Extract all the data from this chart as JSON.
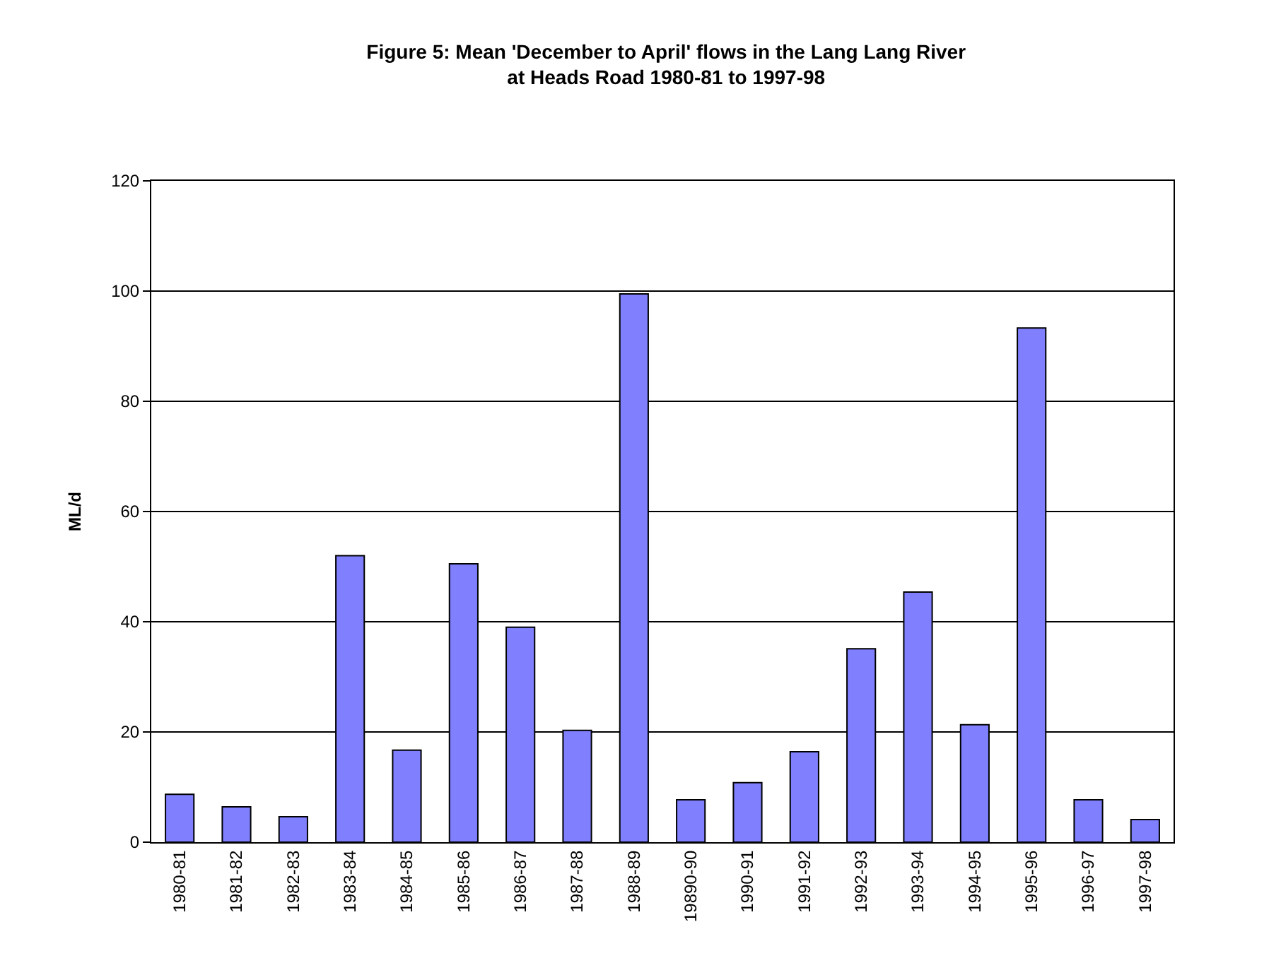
{
  "chart_data": {
    "type": "bar",
    "title": "Figure 5: Mean 'December to April' flows in the Lang Lang River\nat Heads Road 1980-81 to 1997-98",
    "ylabel": "ML/d",
    "categories": [
      "1980-81",
      "1981-82",
      "1982-83",
      "1983-84",
      "1984-85",
      "1985-86",
      "1986-87",
      "1987-88",
      "1988-89",
      "19890-90",
      "1990-91",
      "1991-92",
      "1992-93",
      "1993-94",
      "1994-95",
      "1995-96",
      "1996-97",
      "1997-98"
    ],
    "values": [
      8.7,
      6.4,
      4.6,
      52,
      16.7,
      50.5,
      39,
      20.3,
      99.5,
      7.7,
      10.8,
      16.4,
      35.1,
      45.4,
      21.3,
      93.3,
      7.7,
      4.1
    ],
    "color": "#8080ff",
    "ylim": [
      0,
      120
    ],
    "yticks": [
      0,
      20,
      40,
      60,
      80,
      100,
      120
    ],
    "grid": "y"
  }
}
